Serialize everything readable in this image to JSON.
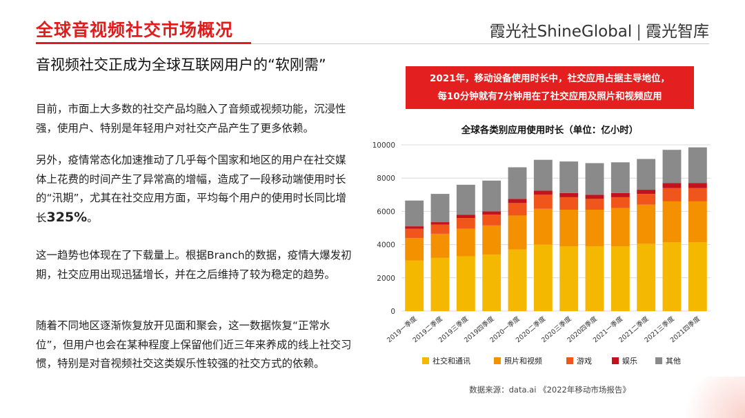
{
  "header": {
    "title": "全球音视频社交市场概况",
    "brand_left": "霞光社ShineGlobal",
    "brand_sep": "|",
    "brand_right": "霞光智库"
  },
  "subtitle": "音视频社交正成为全球互联网用户的“软刚需”",
  "paragraphs": {
    "p1": "目前，市面上大多数的社交产品均融入了音频或视频功能，沉浸性强，使用户、特别是年轻用户对社交产品产生了更多依赖。",
    "p2a": "另外，疫情常态化加速推动了几乎每个国家和地区的用户在社交媒体上花费的时间产生了异常高的增幅，造成了一段移动端使用时长的“汛期”，尤其在社交应用方面，平均每个用户的使用时长同比增长",
    "p2b": "325%",
    "p2c": "。",
    "p3": "这一趋势也体现在了下载量上。根据Branch的数据，疫情大爆发初期，社交应用出现迅猛增长，并在之后维持了较为稳定的趋势。",
    "p4": "随着不同地区逐渐恢复放开见面和聚会，这一数据恢复“正常水位”，但用户也会在某种程度上保留他们近三年来养成的线上社交习惯，特别是对音视频社交这类娱乐性较强的社交方式的依赖。"
  },
  "banner": {
    "line1": "2021年，移动设备使用时长中，社交应用占据主导地位，",
    "line2": "每10分钟就有7分钟用在了社交应用及照片和视频应用"
  },
  "chart_data": {
    "type": "bar",
    "stacked": true,
    "title": "全球各类别应用使用时长（单位：亿小时）",
    "categories": [
      "2019一季度",
      "2019二季度",
      "2019三季度",
      "2019四季度",
      "2020一季度",
      "2020二季度",
      "2020三季度",
      "2020四季度",
      "2021一季度",
      "2021二季度",
      "2021三季度",
      "2021四季度"
    ],
    "series": [
      {
        "name": "社交和通讯",
        "color": "#f5b800",
        "values": [
          3050,
          3200,
          3300,
          3400,
          3700,
          4000,
          3900,
          3900,
          3900,
          4050,
          4150,
          4150
        ]
      },
      {
        "name": "照片和视频",
        "color": "#f39100",
        "values": [
          1350,
          1450,
          1650,
          1750,
          2050,
          2150,
          2200,
          2200,
          2300,
          2350,
          2450,
          2450
        ]
      },
      {
        "name": "游戏",
        "color": "#f0561c",
        "values": [
          550,
          550,
          650,
          650,
          750,
          850,
          750,
          650,
          650,
          650,
          800,
          800
        ]
      },
      {
        "name": "娱乐",
        "color": "#c2121b",
        "values": [
          150,
          150,
          200,
          200,
          250,
          250,
          250,
          250,
          250,
          250,
          300,
          300
        ]
      },
      {
        "name": "其他",
        "color": "#8a8a8a",
        "values": [
          1550,
          1700,
          1800,
          1850,
          1900,
          1850,
          1900,
          1900,
          1850,
          1850,
          2000,
          2150
        ]
      }
    ],
    "ylim": [
      0,
      10000
    ],
    "yticks": [
      0,
      2000,
      4000,
      6000,
      8000,
      10000
    ],
    "legend_position": "bottom"
  },
  "source": "数据来源：data.ai 《2022年移动市场报告》"
}
